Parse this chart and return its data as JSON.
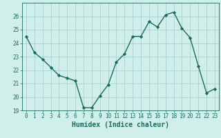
{
  "x": [
    0,
    1,
    2,
    3,
    4,
    5,
    6,
    7,
    8,
    9,
    10,
    11,
    12,
    13,
    14,
    15,
    16,
    17,
    18,
    19,
    20,
    21,
    22,
    23
  ],
  "y": [
    24.5,
    23.3,
    22.8,
    22.2,
    21.6,
    21.4,
    21.2,
    19.2,
    19.2,
    20.1,
    20.9,
    22.6,
    23.2,
    24.5,
    24.5,
    25.6,
    25.2,
    26.1,
    26.3,
    25.1,
    24.4,
    22.3,
    20.3,
    20.6
  ],
  "xlabel": "Humidex (Indice chaleur)",
  "ylim": [
    19,
    27
  ],
  "xlim": [
    -0.5,
    23.5
  ],
  "yticks": [
    19,
    20,
    21,
    22,
    23,
    24,
    25,
    26
  ],
  "xticks": [
    0,
    1,
    2,
    3,
    4,
    5,
    6,
    7,
    8,
    9,
    10,
    11,
    12,
    13,
    14,
    15,
    16,
    17,
    18,
    19,
    20,
    21,
    22,
    23
  ],
  "line_color": "#1a6b5a",
  "marker_color": "#1a6b5a",
  "bg_color": "#d0eeea",
  "grid_color": "#a0ccc8",
  "axis_color": "#1a6b5a",
  "text_color": "#1a6b5a",
  "xlabel_fontsize": 7,
  "tick_fontsize": 5.5
}
